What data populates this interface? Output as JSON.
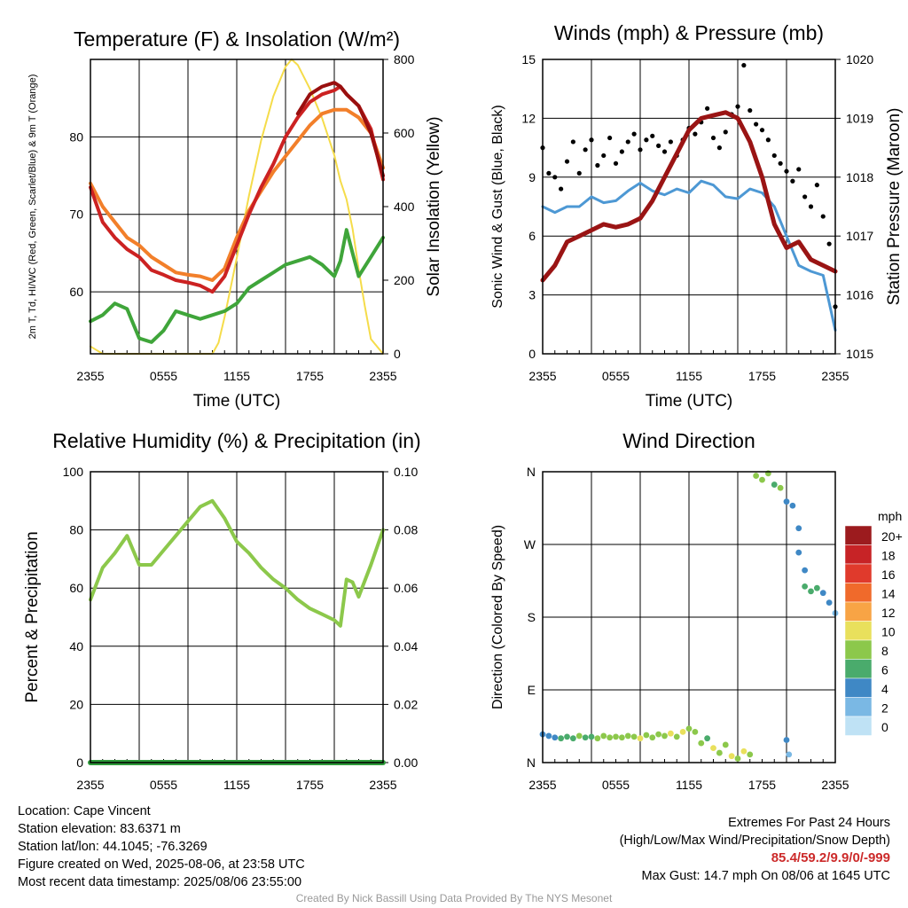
{
  "colors": {
    "temperature": "#cc2222",
    "dewpoint": "#3fa53a",
    "feels_like": "#990f0f",
    "temp_9m": "#f27f2a",
    "solar": "#f5dc4a",
    "wind": "#4d98d4",
    "gust": "#000000",
    "pressure": "#9a1414",
    "humidity": "#8cc84b",
    "precip": "#2e9a3a"
  },
  "footer": {
    "location": "Location: Cape Vincent",
    "elevation": "Station elevation: 83.6371 m",
    "latlon": "Station lat/lon: 44.1045; -76.3269",
    "created": "Figure created on Wed, 2025-08-06, at 23:58 UTC",
    "recent": "Most recent data timestamp: 2025/08/06 23:55:00",
    "extremes_title": "Extremes For Past 24 Hours",
    "extremes_desc": "(High/Low/Max Wind/Precipitation/Snow Depth)",
    "extremes_values": "85.4/59.2/9.9/0/-999",
    "max_gust": "Max Gust: 14.7 mph On 08/06 at 1645 UTC",
    "credit": "Created By Nick Bassill Using Data Provided By The NYS Mesonet"
  },
  "chart_data": [
    {
      "type": "line",
      "title": "Temperature (F) & Insolation (W/m²)",
      "xlabel": "Time (UTC)",
      "ylabel": "2m T, Td, HI/WC (Red, Green, Scarlet/Blue) & 9m T (Orange)",
      "ylabel_right": "Solar Insolation (Yellow)",
      "x_ticks": [
        "2355",
        "0555",
        "1155",
        "1755",
        "2355"
      ],
      "ylim": [
        52,
        90
      ],
      "y_ticks": [
        60,
        70,
        80
      ],
      "ylim_right": [
        0,
        800
      ],
      "y_ticks_right": [
        0,
        200,
        400,
        600,
        800
      ],
      "x_hours": [
        0,
        24
      ],
      "series": [
        {
          "name": "2m T",
          "color_key": "temperature",
          "axis": "left",
          "x": [
            0,
            1,
            2,
            3,
            4,
            5,
            6,
            7,
            8,
            9,
            10,
            11,
            12,
            13,
            14,
            15,
            16,
            17,
            18,
            19,
            20,
            20.5,
            21,
            22,
            23,
            24
          ],
          "y": [
            73.5,
            69,
            67,
            65.5,
            64.5,
            62.8,
            62.2,
            61.5,
            61.2,
            60.8,
            60,
            62,
            66,
            70,
            73.5,
            76.5,
            80,
            82.5,
            84.5,
            85.5,
            86,
            86.5,
            85.5,
            84,
            81,
            74.5
          ]
        },
        {
          "name": "Td",
          "color_key": "dewpoint",
          "axis": "left",
          "x": [
            0,
            1,
            2,
            3,
            4,
            5,
            6,
            7,
            8,
            9,
            10,
            11,
            12,
            13,
            14,
            15,
            16,
            17,
            18,
            19,
            20,
            20.5,
            21,
            21.5,
            22,
            23,
            24
          ],
          "y": [
            56.2,
            57,
            58.5,
            57.8,
            54,
            53.5,
            55,
            57.5,
            57,
            56.5,
            57,
            57.5,
            58.5,
            60.5,
            61.5,
            62.5,
            63.5,
            64,
            64.5,
            63.5,
            62,
            64,
            68,
            65,
            62,
            64.5,
            67
          ]
        },
        {
          "name": "HI/WC",
          "color_key": "feels_like",
          "axis": "left",
          "x": [
            17,
            18,
            19,
            20,
            20.5,
            21,
            22,
            23,
            24
          ],
          "y": [
            83,
            85.5,
            86.5,
            87,
            86.5,
            85.5,
            84,
            80.5,
            75
          ]
        },
        {
          "name": "9m T",
          "color_key": "temp_9m",
          "axis": "left",
          "x": [
            0,
            1,
            2,
            3,
            4,
            5,
            6,
            7,
            8,
            9,
            10,
            11,
            12,
            13,
            14,
            15,
            16,
            17,
            18,
            19,
            20,
            21,
            22,
            23,
            24
          ],
          "y": [
            74,
            71,
            69,
            67,
            66,
            64.5,
            63.5,
            62.5,
            62.2,
            62,
            61.5,
            63,
            67,
            70.5,
            73,
            75.5,
            77.5,
            79.5,
            81.5,
            83,
            83.5,
            83.5,
            82.5,
            80.5,
            76
          ]
        },
        {
          "name": "Solar",
          "color_key": "solar",
          "axis": "right",
          "x": [
            0,
            1,
            2,
            3,
            4,
            5,
            6,
            7,
            8,
            9,
            10,
            10.5,
            11,
            12,
            13,
            14,
            15,
            16,
            16.5,
            17,
            18,
            19,
            20,
            20.5,
            21,
            21.5,
            22,
            22.5,
            23,
            24
          ],
          "y": [
            20,
            0,
            0,
            0,
            0,
            0,
            0,
            0,
            0,
            0,
            0,
            30,
            100,
            260,
            430,
            580,
            700,
            780,
            800,
            785,
            720,
            640,
            540,
            470,
            420,
            340,
            230,
            130,
            40,
            0
          ]
        }
      ]
    },
    {
      "type": "line",
      "title": "Winds (mph) & Pressure (mb)",
      "xlabel": "Time (UTC)",
      "ylabel": "Sonic Wind & Gust (Blue, Black)",
      "ylabel_right": "Station Pressure (Maroon)",
      "x_ticks": [
        "2355",
        "0555",
        "1155",
        "1755",
        "2355"
      ],
      "ylim": [
        0,
        15
      ],
      "y_ticks": [
        0,
        3,
        6,
        9,
        12,
        15
      ],
      "ylim_right": [
        1015,
        1020
      ],
      "y_ticks_right": [
        1015,
        1016,
        1017,
        1018,
        1019,
        1020
      ],
      "x_hours": [
        0,
        24
      ],
      "series": [
        {
          "name": "Sonic Wind",
          "color_key": "wind",
          "axis": "left",
          "x": [
            0,
            1,
            2,
            3,
            4,
            5,
            6,
            7,
            8,
            9,
            10,
            11,
            12,
            13,
            14,
            15,
            16,
            17,
            18,
            19,
            20,
            21,
            22,
            23,
            24
          ],
          "y": [
            7.5,
            7.2,
            7.5,
            7.5,
            8,
            7.7,
            7.8,
            8.3,
            8.7,
            8.3,
            8.1,
            8.4,
            8.2,
            8.8,
            8.6,
            8,
            7.9,
            8.4,
            8.2,
            7.5,
            6,
            4.5,
            4.2,
            4,
            1.2
          ]
        },
        {
          "name": "Gust",
          "color_key": "gust",
          "axis": "left",
          "style": "points",
          "x": [
            0,
            0.5,
            1,
            1.5,
            2,
            2.5,
            3,
            3.5,
            4,
            4.5,
            5,
            5.5,
            6,
            6.5,
            7,
            7.5,
            8,
            8.5,
            9,
            9.5,
            10,
            10.5,
            11,
            11.5,
            12,
            12.5,
            13,
            13.5,
            14,
            14.5,
            15,
            15.5,
            16,
            16.5,
            17,
            17.5,
            18,
            18.5,
            19,
            19.5,
            20,
            20.5,
            21,
            21.5,
            22,
            22.5,
            23,
            23.5,
            24
          ],
          "y": [
            10.5,
            9.2,
            9.0,
            8.4,
            9.8,
            10.8,
            9.2,
            10.4,
            10.9,
            9.6,
            10.1,
            11.0,
            9.7,
            10.3,
            10.8,
            11.2,
            10.4,
            10.9,
            11.1,
            10.6,
            10.3,
            10.8,
            10.1,
            10.9,
            11.5,
            11.2,
            11.8,
            12.5,
            11.0,
            10.5,
            11.3,
            12.2,
            12.6,
            14.7,
            12.4,
            11.7,
            11.4,
            10.9,
            10.1,
            9.7,
            9.3,
            8.8,
            9.4,
            8.0,
            7.5,
            8.6,
            7.0,
            5.6,
            2.4
          ]
        },
        {
          "name": "Station Pressure",
          "color_key": "pressure",
          "axis": "right",
          "x": [
            0,
            1,
            2,
            3,
            4,
            5,
            6,
            7,
            8,
            9,
            10,
            11,
            12,
            13,
            14,
            15,
            16,
            17,
            18,
            19,
            20,
            21,
            22,
            23,
            24
          ],
          "y": [
            1016.25,
            1016.5,
            1016.9,
            1017.0,
            1017.1,
            1017.2,
            1017.15,
            1017.2,
            1017.3,
            1017.6,
            1018.0,
            1018.4,
            1018.8,
            1019.0,
            1019.05,
            1019.1,
            1019.0,
            1018.6,
            1018.0,
            1017.2,
            1016.8,
            1016.9,
            1016.6,
            1016.5,
            1016.4
          ]
        }
      ]
    },
    {
      "type": "line",
      "title": "Relative Humidity (%) & Precipitation (in)",
      "xlabel": "",
      "ylabel": "Percent & Precipitation",
      "x_ticks": [
        "2355",
        "0555",
        "1155",
        "1755",
        "2355"
      ],
      "ylim": [
        0,
        100
      ],
      "y_ticks": [
        0,
        20,
        40,
        60,
        80,
        100
      ],
      "ylim_right": [
        0,
        0.1
      ],
      "y_ticks_right": [
        "0.00",
        "0.02",
        "0.04",
        "0.06",
        "0.08",
        "0.10"
      ],
      "x_hours": [
        0,
        24
      ],
      "series": [
        {
          "name": "Relative Humidity",
          "color_key": "humidity",
          "axis": "left",
          "x": [
            0,
            1,
            2,
            3,
            4,
            5,
            6,
            7,
            8,
            9,
            10,
            11,
            12,
            13,
            14,
            15,
            16,
            17,
            18,
            19,
            20,
            20.5,
            21,
            21.5,
            22,
            23,
            24
          ],
          "y": [
            56,
            67,
            72,
            78,
            68,
            68,
            73,
            78,
            83,
            88,
            90,
            84,
            76,
            72,
            67,
            63,
            60,
            56,
            53,
            51,
            49,
            47,
            63,
            62,
            57,
            68,
            80
          ]
        },
        {
          "name": "Precipitation",
          "color_key": "precip",
          "axis": "right",
          "x": [
            0,
            24
          ],
          "y": [
            0,
            0
          ]
        }
      ]
    },
    {
      "type": "scatter",
      "title": "Wind Direction",
      "xlabel": "",
      "ylabel": "Direction (Colored By Speed)",
      "x_ticks": [
        "2355",
        "0555",
        "1155",
        "1755",
        "2355"
      ],
      "ylim": [
        0,
        360
      ],
      "y_ticks": [
        "N",
        "E",
        "S",
        "W",
        "N"
      ],
      "x_hours": [
        0,
        24
      ],
      "legend_title": "mph",
      "legend_labels": [
        "20+",
        "18",
        "16",
        "14",
        "12",
        "10",
        "8",
        "6",
        "4",
        "2",
        "0"
      ],
      "legend_colors": [
        "#9c1b1e",
        "#c72326",
        "#e03a2c",
        "#f06a2b",
        "#f8a445",
        "#e9e05c",
        "#8cc84b",
        "#4aab6c",
        "#3f88c5",
        "#7ab8e4",
        "#bfe2f5"
      ],
      "series": [
        {
          "name": "Direction",
          "x": [
            0,
            0.5,
            1,
            1.5,
            2,
            2.5,
            3,
            3.5,
            4,
            4.5,
            5,
            5.5,
            6,
            6.5,
            7,
            7.5,
            8,
            8.5,
            9,
            9.5,
            10,
            10.5,
            11,
            11.5,
            12,
            12.5,
            13,
            13.5,
            14,
            14.5,
            15,
            15.5,
            16,
            16.5,
            17,
            17.5,
            18,
            18.5,
            19,
            19.5,
            20,
            20.5,
            21,
            21.5,
            22,
            22.5,
            23,
            23.5,
            24,
            20,
            20.2,
            21,
            21.5
          ],
          "y": [
            35,
            33,
            31,
            30,
            32,
            30,
            33,
            31,
            32,
            30,
            33,
            31,
            32,
            31,
            33,
            32,
            30,
            34,
            31,
            35,
            33,
            36,
            32,
            38,
            42,
            38,
            24,
            30,
            18,
            12,
            22,
            8,
            5,
            14,
            10,
            355,
            350,
            358,
            344,
            340,
            323,
            318,
            290,
            218,
            212,
            216,
            210,
            198,
            185,
            28,
            10,
            260,
            238
          ],
          "speed": [
            4,
            3,
            4,
            5,
            6,
            5,
            7,
            6,
            6,
            7,
            7,
            8,
            8,
            7,
            8,
            8,
            9,
            8,
            8,
            8,
            8,
            9,
            8,
            10,
            8,
            7,
            8,
            6,
            9,
            8,
            7,
            9,
            8,
            10,
            7,
            7,
            7,
            7,
            6,
            8,
            4,
            4,
            4,
            6,
            5,
            5,
            3,
            3,
            2,
            3,
            2,
            3,
            3
          ]
        }
      ]
    }
  ]
}
